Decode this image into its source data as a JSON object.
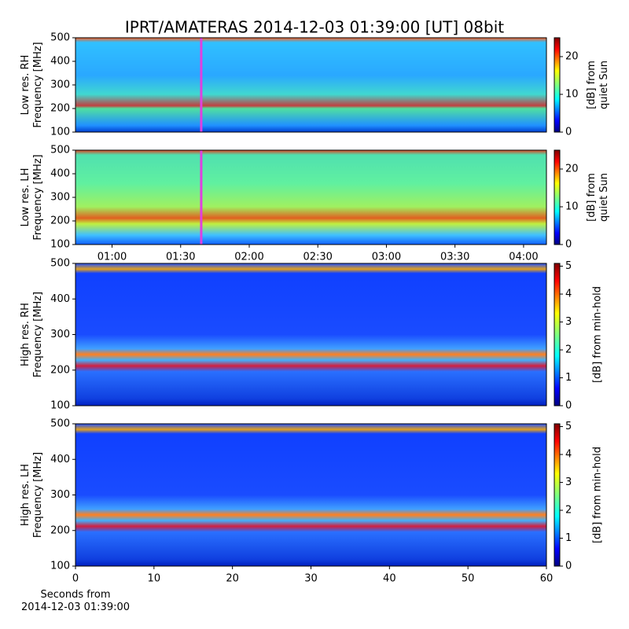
{
  "title": "IPRT/AMATERAS 2014-12-03 01:39:00 [UT]   08bit",
  "chart_data": [
    {
      "type": "heatmap",
      "ylabel": "Low res. RH\nFrequency [MHz]",
      "ylim": [
        100,
        500
      ],
      "yticks": [
        100,
        200,
        300,
        400,
        500
      ],
      "xlim": [
        "00:44",
        "04:10"
      ],
      "marker": {
        "x": "01:39",
        "color": "#e040e0"
      },
      "colorbar_label": "[dB] from\nquiet Sun",
      "clim": [
        0,
        25
      ],
      "cticks": [
        0,
        10,
        20
      ],
      "colormap": "jet"
    },
    {
      "type": "heatmap",
      "ylabel": "Low res. LH\nFrequency [MHz]",
      "ylim": [
        100,
        500
      ],
      "yticks": [
        100,
        200,
        300,
        400,
        500
      ],
      "xlim": [
        "00:44",
        "04:10"
      ],
      "xticks": [
        "01:00",
        "01:30",
        "02:00",
        "02:30",
        "03:00",
        "03:30",
        "04:00"
      ],
      "marker": {
        "x": "01:39",
        "color": "#e040e0"
      },
      "colorbar_label": "[dB] from\nquiet Sun",
      "clim": [
        0,
        25
      ],
      "cticks": [
        0,
        10,
        20
      ],
      "colormap": "jet"
    },
    {
      "type": "heatmap",
      "ylabel": "High res. RH\nFrequency [MHz]",
      "ylim": [
        100,
        500
      ],
      "yticks": [
        100,
        200,
        300,
        400,
        500
      ],
      "xlim": [
        0,
        60
      ],
      "colorbar_label": "[dB] from min-hold",
      "clim": [
        0,
        5.1
      ],
      "cticks": [
        0,
        1,
        2,
        3,
        4,
        5
      ],
      "colormap": "jet"
    },
    {
      "type": "heatmap",
      "ylabel": "High res. LH\nFrequency [MHz]",
      "ylim": [
        100,
        500
      ],
      "yticks": [
        100,
        200,
        300,
        400,
        500
      ],
      "xlim": [
        0,
        60
      ],
      "xticks": [
        0,
        10,
        20,
        30,
        40,
        50,
        60
      ],
      "xlabel": "Seconds from\n2014-12-03 01:39:00",
      "colorbar_label": "[dB] from min-hold",
      "clim": [
        0,
        5.1
      ],
      "cticks": [
        0,
        1,
        2,
        3,
        4,
        5
      ],
      "colormap": "jet"
    }
  ]
}
